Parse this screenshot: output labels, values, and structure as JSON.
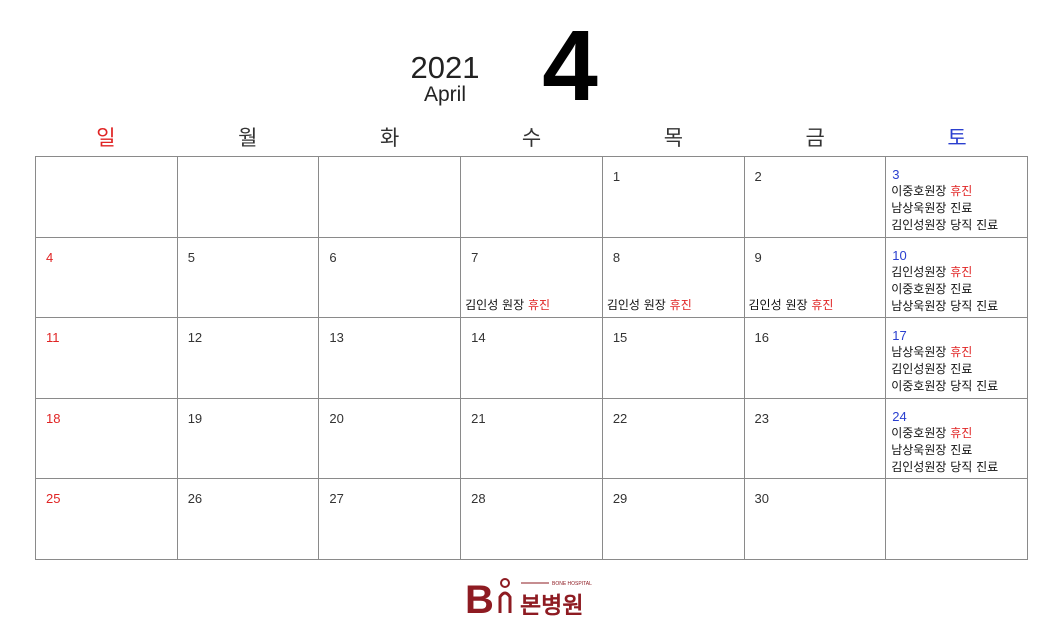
{
  "header": {
    "year": "2021",
    "month_name": "April",
    "month_number": "4"
  },
  "weekdays": [
    "일",
    "월",
    "화",
    "수",
    "목",
    "금",
    "토"
  ],
  "days": {
    "d1": "1",
    "d2": "2",
    "d3": "3",
    "d4": "4",
    "d5": "5",
    "d6": "6",
    "d7": "7",
    "d8": "8",
    "d9": "9",
    "d10": "10",
    "d11": "11",
    "d12": "12",
    "d13": "13",
    "d14": "14",
    "d15": "15",
    "d16": "16",
    "d17": "17",
    "d18": "18",
    "d19": "19",
    "d20": "20",
    "d21": "21",
    "d22": "22",
    "d23": "23",
    "d24": "24",
    "d25": "25",
    "d26": "26",
    "d27": "27",
    "d28": "28",
    "d29": "29",
    "d30": "30"
  },
  "notes": {
    "closed": "휴진",
    "d3": {
      "l1_name": "이중호원장 ",
      "l2": "남상욱원장 진료",
      "l3": "김인성원장 당직 진료"
    },
    "d10": {
      "l1_name": "김인성원장 ",
      "l2": "이중호원장 진료",
      "l3": "남상욱원장 당직 진료"
    },
    "d17": {
      "l1_name": "남상욱원장 ",
      "l2": "김인성원장 진료",
      "l3": "이중호원장 당직 진료"
    },
    "d24": {
      "l1_name": "이중호원장 ",
      "l2": "남상욱원장 진료",
      "l3": "김인성원장 당직 진료"
    },
    "weekday_closed_name": "김인성 원장 "
  },
  "logo": {
    "sub_text": "BONE HOSPITAL",
    "name": "본병원",
    "color": "#8e1b22"
  }
}
